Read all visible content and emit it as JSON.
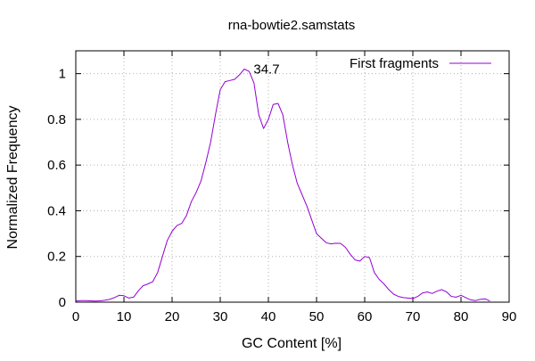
{
  "chart_data": {
    "type": "line",
    "title": "rna-bowtie2.samstats",
    "xlabel": "GC Content [%]",
    "ylabel": "Normalized Frequency",
    "xlim": [
      0,
      90
    ],
    "ylim": [
      0,
      1.1
    ],
    "grid": true,
    "legend_position": "top-right",
    "x_ticks": [
      0,
      10,
      20,
      30,
      40,
      50,
      60,
      70,
      80,
      90
    ],
    "y_ticks": [
      0,
      0.2,
      0.4,
      0.6,
      0.8,
      1
    ],
    "annotations": [
      {
        "text": "34.7",
        "x": 34.7,
        "y": 1.0
      }
    ],
    "series": [
      {
        "name": "First fragments",
        "color": "#9400d3",
        "x": [
          0,
          1,
          2,
          3,
          4,
          5,
          6,
          7,
          8,
          9,
          10,
          11,
          12,
          13,
          14,
          15,
          16,
          17,
          18,
          19,
          20,
          21,
          22,
          23,
          24,
          25,
          26,
          27,
          28,
          29,
          30,
          31,
          32,
          33,
          34,
          35,
          36,
          37,
          38,
          39,
          40,
          41,
          42,
          43,
          44,
          45,
          46,
          47,
          48,
          49,
          50,
          51,
          52,
          53,
          54,
          55,
          56,
          57,
          58,
          59,
          60,
          61,
          62,
          63,
          64,
          65,
          66,
          67,
          68,
          69,
          70,
          71,
          72,
          73,
          74,
          75,
          76,
          77,
          78,
          79,
          80,
          81,
          82,
          83,
          84,
          85,
          86
        ],
        "y": [
          0.005,
          0.007,
          0.007,
          0.006,
          0.005,
          0.006,
          0.008,
          0.012,
          0.02,
          0.03,
          0.028,
          0.018,
          0.022,
          0.05,
          0.072,
          0.08,
          0.09,
          0.13,
          0.2,
          0.27,
          0.31,
          0.335,
          0.345,
          0.38,
          0.44,
          0.48,
          0.53,
          0.61,
          0.7,
          0.82,
          0.93,
          0.965,
          0.97,
          0.975,
          0.995,
          1.02,
          1.01,
          0.96,
          0.82,
          0.76,
          0.8,
          0.865,
          0.87,
          0.82,
          0.7,
          0.6,
          0.52,
          0.47,
          0.42,
          0.36,
          0.3,
          0.28,
          0.26,
          0.255,
          0.258,
          0.257,
          0.24,
          0.21,
          0.185,
          0.18,
          0.2,
          0.195,
          0.13,
          0.1,
          0.08,
          0.055,
          0.035,
          0.025,
          0.02,
          0.018,
          0.016,
          0.025,
          0.04,
          0.045,
          0.038,
          0.048,
          0.055,
          0.045,
          0.025,
          0.022,
          0.03,
          0.02,
          0.01,
          0.007,
          0.012,
          0.015,
          0.005
        ]
      }
    ]
  }
}
